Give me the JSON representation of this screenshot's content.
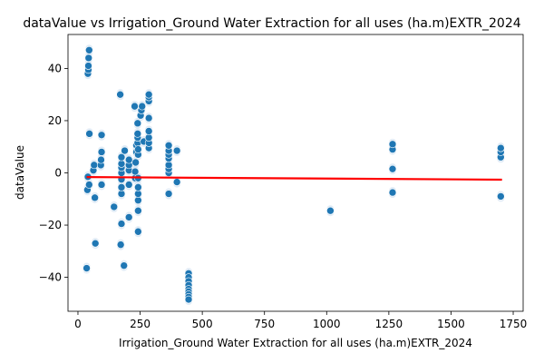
{
  "chart_data": {
    "type": "scatter",
    "title": "dataValue vs Irrigation_Ground Water Extraction for all uses (ha.m)EXTR_2024",
    "xlabel": "Irrigation_Ground Water Extraction for all uses (ha.m)EXTR_2024",
    "ylabel": "dataValue",
    "xlim": [
      -40,
      1790
    ],
    "ylim": [
      -53,
      53
    ],
    "xticks": [
      0,
      250,
      500,
      750,
      1000,
      1250,
      1500,
      1750
    ],
    "yticks": [
      -40,
      -20,
      0,
      20,
      40
    ],
    "grid": false,
    "legend": "none",
    "colors": {
      "points": "#1f77b4",
      "ci_band": "#c6dbef",
      "regression": "#ff0000"
    },
    "regression_line": {
      "x": [
        35,
        1705
      ],
      "y": [
        -1.6,
        -2.6
      ]
    },
    "points": [
      {
        "x": 35,
        "y": -36.5
      },
      {
        "x": 38,
        "y": -6.5
      },
      {
        "x": 40,
        "y": -1.5
      },
      {
        "x": 40,
        "y": 38
      },
      {
        "x": 42,
        "y": 39.5
      },
      {
        "x": 42,
        "y": 41
      },
      {
        "x": 43,
        "y": 44
      },
      {
        "x": 45,
        "y": 47
      },
      {
        "x": 45,
        "y": -4.5
      },
      {
        "x": 46,
        "y": 15
      },
      {
        "x": 62,
        "y": 1
      },
      {
        "x": 65,
        "y": 3
      },
      {
        "x": 68,
        "y": -9.5
      },
      {
        "x": 70,
        "y": -27
      },
      {
        "x": 92,
        "y": 3
      },
      {
        "x": 93,
        "y": 5
      },
      {
        "x": 95,
        "y": 8
      },
      {
        "x": 95,
        "y": 14.5
      },
      {
        "x": 95,
        "y": -4.5
      },
      {
        "x": 145,
        "y": -13
      },
      {
        "x": 170,
        "y": 30
      },
      {
        "x": 172,
        "y": -27.5
      },
      {
        "x": 175,
        "y": -19.5
      },
      {
        "x": 175,
        "y": -8
      },
      {
        "x": 175,
        "y": -5.5
      },
      {
        "x": 175,
        "y": -2.5
      },
      {
        "x": 175,
        "y": 0
      },
      {
        "x": 175,
        "y": 2
      },
      {
        "x": 175,
        "y": 3.5
      },
      {
        "x": 175,
        "y": 6
      },
      {
        "x": 185,
        "y": -35.5
      },
      {
        "x": 188,
        "y": 8.5
      },
      {
        "x": 205,
        "y": -17
      },
      {
        "x": 205,
        "y": -4.5
      },
      {
        "x": 205,
        "y": 1
      },
      {
        "x": 205,
        "y": 3
      },
      {
        "x": 205,
        "y": 5
      },
      {
        "x": 228,
        "y": 25.5
      },
      {
        "x": 230,
        "y": -2
      },
      {
        "x": 230,
        "y": 0.5
      },
      {
        "x": 232,
        "y": 4
      },
      {
        "x": 235,
        "y": 8
      },
      {
        "x": 235,
        "y": 10.5
      },
      {
        "x": 240,
        "y": 11.5
      },
      {
        "x": 240,
        "y": 13.5
      },
      {
        "x": 240,
        "y": 15
      },
      {
        "x": 240,
        "y": 19
      },
      {
        "x": 242,
        "y": -22.5
      },
      {
        "x": 242,
        "y": -14.5
      },
      {
        "x": 242,
        "y": -10.5
      },
      {
        "x": 242,
        "y": -8
      },
      {
        "x": 242,
        "y": -5.5
      },
      {
        "x": 242,
        "y": -2
      },
      {
        "x": 242,
        "y": 7
      },
      {
        "x": 242,
        "y": 9
      },
      {
        "x": 252,
        "y": 22
      },
      {
        "x": 255,
        "y": 24
      },
      {
        "x": 258,
        "y": 25.5
      },
      {
        "x": 265,
        "y": 12
      },
      {
        "x": 285,
        "y": 9.5
      },
      {
        "x": 285,
        "y": 11.5
      },
      {
        "x": 285,
        "y": 13.5
      },
      {
        "x": 285,
        "y": 16
      },
      {
        "x": 285,
        "y": 21
      },
      {
        "x": 285,
        "y": 27.5
      },
      {
        "x": 285,
        "y": 29
      },
      {
        "x": 285,
        "y": 30
      },
      {
        "x": 365,
        "y": -8
      },
      {
        "x": 365,
        "y": 0
      },
      {
        "x": 365,
        "y": 1.5
      },
      {
        "x": 365,
        "y": 3
      },
      {
        "x": 365,
        "y": 5.5
      },
      {
        "x": 365,
        "y": 7
      },
      {
        "x": 365,
        "y": 8.5
      },
      {
        "x": 365,
        "y": 10.5
      },
      {
        "x": 398,
        "y": -3.5
      },
      {
        "x": 398,
        "y": 8.5
      },
      {
        "x": 445,
        "y": -38.5
      },
      {
        "x": 445,
        "y": -40
      },
      {
        "x": 445,
        "y": -41.5
      },
      {
        "x": 445,
        "y": -43
      },
      {
        "x": 445,
        "y": -44.5
      },
      {
        "x": 445,
        "y": -45.5
      },
      {
        "x": 445,
        "y": -46.5
      },
      {
        "x": 445,
        "y": -47.5
      },
      {
        "x": 445,
        "y": -48.5
      },
      {
        "x": 1015,
        "y": -14.5
      },
      {
        "x": 1265,
        "y": -7.5
      },
      {
        "x": 1265,
        "y": 1.5
      },
      {
        "x": 1265,
        "y": 9
      },
      {
        "x": 1265,
        "y": 11
      },
      {
        "x": 1700,
        "y": -9
      },
      {
        "x": 1700,
        "y": 6
      },
      {
        "x": 1700,
        "y": 8
      },
      {
        "x": 1700,
        "y": 9.5
      }
    ]
  }
}
